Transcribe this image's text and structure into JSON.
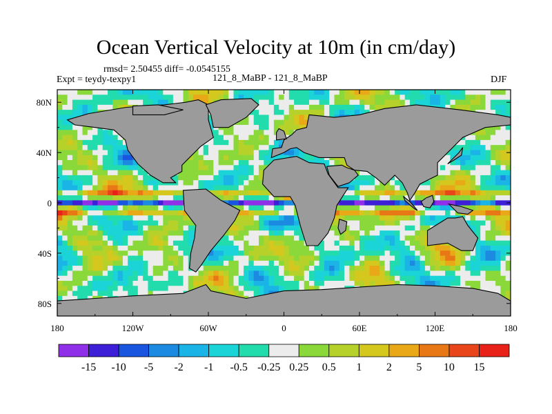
{
  "chart_data": {
    "type": "heatmap",
    "title": "Ocean Vertical Velocity at 10m (in cm/day)",
    "stats": "rmsd= 2.50455 diff= -0.0545155",
    "experiment": "Expt = teydy-texpy1",
    "comparison": "121_8_MaBP - 121_8_MaBP",
    "season": "DJF",
    "units": "cm/day",
    "x_ticks": [
      "180",
      "120W",
      "60W",
      "0",
      "60E",
      "120E",
      "180"
    ],
    "y_ticks": [
      "80N",
      "40N",
      "0",
      "40S",
      "80S"
    ],
    "colorbar": {
      "labels": [
        "-15",
        "-10",
        "-5",
        "-2",
        "-1",
        "-0.5",
        "-0.25",
        "0.25",
        "0.5",
        "1",
        "2",
        "5",
        "10",
        "15"
      ],
      "colors": [
        "#8f2fe8",
        "#3d1fd8",
        "#1a55e0",
        "#1b8ae0",
        "#1ab4e6",
        "#1ad4d8",
        "#22dcae",
        "#ececec",
        "#8ad83a",
        "#b6d22a",
        "#d4c81e",
        "#e8a818",
        "#e87816",
        "#e8461a",
        "#e82218"
      ]
    },
    "land_color": "#9b9b9b"
  }
}
